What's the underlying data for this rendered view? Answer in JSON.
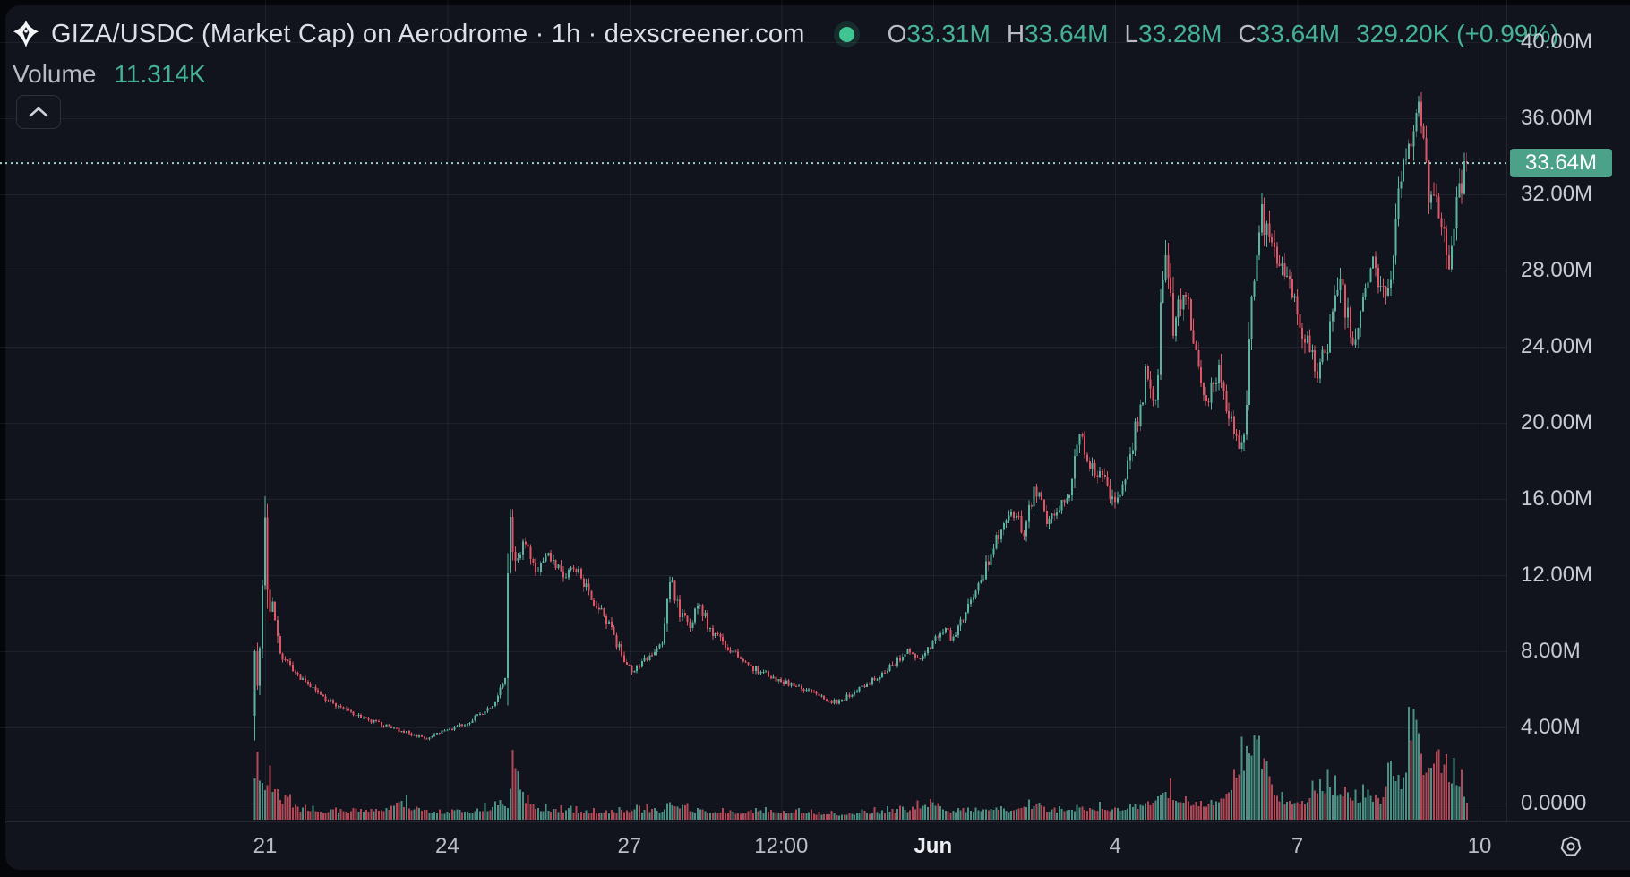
{
  "header": {
    "title": "GIZA/USDC (Market Cap) on Aerodrome · 1h · dexscreener.com",
    "ohlc": {
      "o_label": "O",
      "o": "33.31M",
      "h_label": "H",
      "h": "33.64M",
      "l_label": "L",
      "l": "33.28M",
      "c_label": "C",
      "c": "33.64M",
      "change": "329.20K (+0.99%)"
    },
    "volume_label": "Volume",
    "volume_value": "11.314K"
  },
  "colors": {
    "page": "#04060a",
    "panel": "#11141d",
    "up": "#5cb3a1",
    "down": "#e05666",
    "grid": "rgba(255,255,255,0.06)",
    "axis_border": "rgba(255,255,255,0.08)",
    "accent_text": "#46b295",
    "dot": "#3fc492",
    "badge_bg": "#4ca189",
    "price_line": "#9fd3c5",
    "axis_text": "#c7cad2",
    "icon": "#c9ccd4"
  },
  "price_scale": {
    "ticks": [
      {
        "label": "40.00M",
        "value": 40
      },
      {
        "label": "36.00M",
        "value": 36
      },
      {
        "label": "32.00M",
        "value": 32
      },
      {
        "label": "28.00M",
        "value": 28
      },
      {
        "label": "24.00M",
        "value": 24
      },
      {
        "label": "20.00M",
        "value": 20
      },
      {
        "label": "16.00M",
        "value": 16
      },
      {
        "label": "12.00M",
        "value": 12
      },
      {
        "label": "8.00M",
        "value": 8
      },
      {
        "label": "4.00M",
        "value": 4
      },
      {
        "label": "0.0000",
        "value": 0
      }
    ],
    "current": {
      "label": "33.64M",
      "value": 33.64
    }
  },
  "time_scale": {
    "ticks": [
      {
        "label": "21",
        "day": 1,
        "bold": false
      },
      {
        "label": "24",
        "day": 4,
        "bold": false
      },
      {
        "label": "27",
        "day": 7,
        "bold": false
      },
      {
        "label": "12:00",
        "day": 9.5,
        "bold": false
      },
      {
        "label": "Jun",
        "day": 12,
        "bold": true
      },
      {
        "label": "4",
        "day": 15,
        "bold": false
      },
      {
        "label": "7",
        "day": 18,
        "bold": false
      },
      {
        "label": "10",
        "day": 21,
        "bold": false
      }
    ]
  },
  "chart_data": {
    "type": "candlestick",
    "symbol": "GIZA/USDC",
    "metric": "Market Cap",
    "dex": "Aerodrome",
    "interval": "1h",
    "source": "dexscreener.com",
    "latest": {
      "open_m": 33.31,
      "high_m": 33.64,
      "low_m": 33.28,
      "close_m": 33.64,
      "change_abs": "329.20K",
      "change_pct": "+0.99%",
      "volume": "11.314K"
    },
    "current_price_m": 33.64,
    "y_axis": {
      "unit": "market cap USD (millions)",
      "min": 0,
      "max": 41.3,
      "gridline_step_m": 4
    },
    "x_axis": {
      "days_span": [
        0.83,
        20.8
      ],
      "day0": "May 20 00:00",
      "tick_labels": [
        "21",
        "24",
        "27",
        "12:00",
        "Jun",
        "4",
        "7",
        "10"
      ]
    },
    "price_keyframes_day_value_m": [
      [
        0.83,
        4.6
      ],
      [
        0.875,
        9.8
      ],
      [
        0.92,
        5.8
      ],
      [
        1.0,
        12.0
      ],
      [
        1.04,
        15.9
      ],
      [
        1.1,
        9.8
      ],
      [
        1.17,
        10.4
      ],
      [
        1.3,
        7.8
      ],
      [
        1.5,
        6.9
      ],
      [
        1.75,
        6.2
      ],
      [
        2.1,
        5.4
      ],
      [
        2.5,
        4.7
      ],
      [
        2.9,
        4.2
      ],
      [
        3.3,
        3.8
      ],
      [
        3.7,
        3.4
      ],
      [
        4.0,
        3.8
      ],
      [
        4.4,
        4.3
      ],
      [
        4.8,
        5.2
      ],
      [
        5.0,
        6.5
      ],
      [
        5.06,
        15.5
      ],
      [
        5.17,
        12.2
      ],
      [
        5.3,
        13.7
      ],
      [
        5.5,
        12.2
      ],
      [
        5.7,
        13.1
      ],
      [
        5.95,
        11.9
      ],
      [
        6.15,
        12.5
      ],
      [
        6.4,
        10.8
      ],
      [
        6.65,
        9.7
      ],
      [
        6.9,
        7.9
      ],
      [
        7.1,
        6.9
      ],
      [
        7.35,
        7.7
      ],
      [
        7.6,
        8.6
      ],
      [
        7.72,
        12.1
      ],
      [
        7.85,
        10.0
      ],
      [
        8.05,
        9.3
      ],
      [
        8.18,
        10.5
      ],
      [
        8.4,
        9.0
      ],
      [
        8.65,
        8.3
      ],
      [
        8.9,
        7.4
      ],
      [
        9.2,
        6.9
      ],
      [
        9.5,
        6.5
      ],
      [
        9.85,
        6.1
      ],
      [
        10.15,
        5.7
      ],
      [
        10.45,
        5.3
      ],
      [
        10.75,
        5.9
      ],
      [
        11.05,
        6.5
      ],
      [
        11.35,
        7.2
      ],
      [
        11.6,
        8.0
      ],
      [
        11.8,
        7.5
      ],
      [
        12.0,
        8.2
      ],
      [
        12.2,
        9.2
      ],
      [
        12.35,
        8.7
      ],
      [
        12.55,
        9.9
      ],
      [
        12.8,
        11.5
      ],
      [
        13.0,
        13.2
      ],
      [
        13.2,
        14.6
      ],
      [
        13.4,
        15.2
      ],
      [
        13.55,
        14.3
      ],
      [
        13.72,
        16.6
      ],
      [
        13.9,
        15.0
      ],
      [
        14.1,
        15.7
      ],
      [
        14.25,
        16.0
      ],
      [
        14.45,
        19.5
      ],
      [
        14.7,
        17.3
      ],
      [
        14.9,
        16.8
      ],
      [
        15.05,
        15.8
      ],
      [
        15.2,
        16.8
      ],
      [
        15.35,
        19.2
      ],
      [
        15.55,
        22.6
      ],
      [
        15.7,
        21.4
      ],
      [
        15.88,
        29.4
      ],
      [
        16.0,
        25.2
      ],
      [
        16.2,
        26.8
      ],
      [
        16.35,
        23.6
      ],
      [
        16.55,
        21.2
      ],
      [
        16.75,
        22.6
      ],
      [
        16.95,
        20.2
      ],
      [
        17.15,
        18.3
      ],
      [
        17.3,
        26.5
      ],
      [
        17.45,
        30.8
      ],
      [
        17.6,
        29.2
      ],
      [
        17.8,
        27.6
      ],
      [
        18.0,
        26.8
      ],
      [
        18.15,
        24.6
      ],
      [
        18.35,
        22.6
      ],
      [
        18.55,
        24.2
      ],
      [
        18.75,
        27.4
      ],
      [
        18.95,
        24.6
      ],
      [
        19.15,
        26.4
      ],
      [
        19.3,
        28.6
      ],
      [
        19.45,
        26.4
      ],
      [
        19.6,
        28.4
      ],
      [
        19.75,
        33.4
      ],
      [
        19.88,
        34.6
      ],
      [
        20.02,
        37.0
      ],
      [
        20.1,
        35.2
      ],
      [
        20.2,
        32.6
      ],
      [
        20.32,
        31.4
      ],
      [
        20.45,
        30.0
      ],
      [
        20.55,
        28.6
      ],
      [
        20.65,
        31.2
      ],
      [
        20.73,
        32.6
      ],
      [
        20.8,
        33.64
      ]
    ],
    "volume_keyframes_day_frac": [
      [
        0.83,
        0.33
      ],
      [
        0.87,
        0.53
      ],
      [
        0.95,
        0.31
      ],
      [
        1.05,
        0.39
      ],
      [
        1.2,
        0.22
      ],
      [
        1.5,
        0.1
      ],
      [
        2,
        0.08
      ],
      [
        2.5,
        0.07
      ],
      [
        3,
        0.1
      ],
      [
        3.2,
        0.17
      ],
      [
        3.5,
        0.08
      ],
      [
        4,
        0.07
      ],
      [
        4.5,
        0.08
      ],
      [
        5,
        0.14
      ],
      [
        5.06,
        0.49
      ],
      [
        5.2,
        0.22
      ],
      [
        5.5,
        0.1
      ],
      [
        6,
        0.08
      ],
      [
        6.5,
        0.07
      ],
      [
        7,
        0.09
      ],
      [
        7.5,
        0.08
      ],
      [
        7.72,
        0.17
      ],
      [
        8,
        0.08
      ],
      [
        8.5,
        0.07
      ],
      [
        9,
        0.06
      ],
      [
        9.5,
        0.08
      ],
      [
        10,
        0.06
      ],
      [
        10.5,
        0.05
      ],
      [
        11,
        0.07
      ],
      [
        11.5,
        0.08
      ],
      [
        12,
        0.16
      ],
      [
        12.3,
        0.08
      ],
      [
        12.8,
        0.1
      ],
      [
        13.2,
        0.09
      ],
      [
        13.72,
        0.12
      ],
      [
        14,
        0.08
      ],
      [
        14.45,
        0.11
      ],
      [
        15,
        0.1
      ],
      [
        15.5,
        0.14
      ],
      [
        15.88,
        0.25
      ],
      [
        16.2,
        0.17
      ],
      [
        16.6,
        0.14
      ],
      [
        16.95,
        0.33
      ],
      [
        17.15,
        0.53
      ],
      [
        17.3,
        0.89
      ],
      [
        17.5,
        0.39
      ],
      [
        17.8,
        0.14
      ],
      [
        18.2,
        0.19
      ],
      [
        18.5,
        0.33
      ],
      [
        18.8,
        0.17
      ],
      [
        19.1,
        0.22
      ],
      [
        19.4,
        0.19
      ],
      [
        19.5,
        0.56
      ],
      [
        19.7,
        0.33
      ],
      [
        19.94,
        0.92
      ],
      [
        20.1,
        0.33
      ],
      [
        20.28,
        0.75
      ],
      [
        20.45,
        0.39
      ],
      [
        20.6,
        0.44
      ],
      [
        20.8,
        0.19
      ]
    ],
    "candle_interval_days": 0.0416667,
    "seed": 7
  }
}
